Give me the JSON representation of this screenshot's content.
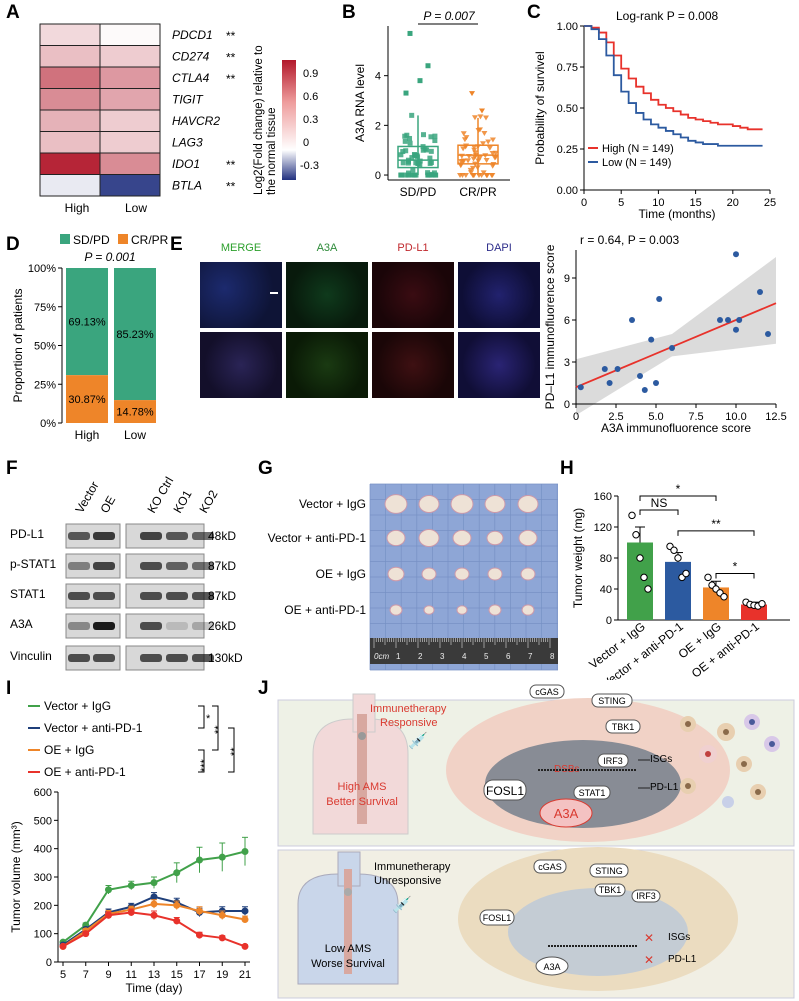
{
  "panel_labels": [
    "A",
    "B",
    "C",
    "D",
    "E",
    "F",
    "G",
    "H",
    "I",
    "J"
  ],
  "heatmap": {
    "columns": [
      "High",
      "Low"
    ],
    "genes": [
      "PDCD1",
      "CD274",
      "CTLA4",
      "TIGIT",
      "HAVCR2",
      "LAG3",
      "IDO1",
      "BTLA"
    ],
    "significance": [
      "**",
      "**",
      "**",
      "",
      "",
      "",
      "**",
      "**"
    ],
    "values_high": [
      0.15,
      0.25,
      0.55,
      0.45,
      0.3,
      0.25,
      0.85,
      -0.05
    ],
    "values_low": [
      0.02,
      0.2,
      0.4,
      0.35,
      0.2,
      0.2,
      0.45,
      -0.45
    ],
    "colorbar_label_1": "Log2(Fold change) relative to",
    "colorbar_label_2": "the normal tissue",
    "colorbar_ticks": [
      "0.9",
      "0.6",
      "0.3",
      "0",
      "-0.3"
    ],
    "colors": {
      "high": "#b2182b",
      "mid": "#ffffff",
      "low": "#21307f"
    }
  },
  "chart_data": [
    {
      "panel": "B",
      "type": "box",
      "title": "P = 0.007",
      "ylabel": "A3A RNA level",
      "categories": [
        "SD/PD",
        "CR/PR"
      ],
      "yticks": [
        "0",
        "2",
        "4"
      ],
      "ylim": [
        -0.2,
        6
      ],
      "colors": [
        "#3aa57e",
        "#ee8529"
      ],
      "boxes": [
        {
          "name": "SD/PD",
          "q1": 0.3,
          "median": 0.6,
          "q3": 1.15,
          "whisker_low": 0.0,
          "whisker_high": 2.4
        },
        {
          "name": "CR/PR",
          "q1": 0.45,
          "median": 0.8,
          "q3": 1.2,
          "whisker_low": 0.0,
          "whisker_high": 2.3
        }
      ]
    },
    {
      "panel": "C",
      "type": "line",
      "title": "Log-rank P = 0.008",
      "xlabel": "Time (months)",
      "ylabel": "Probability of survivel",
      "xticks": [
        "0",
        "5",
        "10",
        "15",
        "20",
        "25"
      ],
      "yticks": [
        "0.00",
        "0.25",
        "0.50",
        "0.75",
        "1.00"
      ],
      "xlim": [
        0,
        25
      ],
      "ylim": [
        0,
        1
      ],
      "series": [
        {
          "name": "High (N = 149)",
          "color": "#e8322b",
          "x": [
            0,
            1,
            2,
            3,
            4,
            5,
            6,
            7,
            8,
            9,
            10,
            11,
            12,
            13,
            14,
            15,
            16,
            17,
            18,
            19,
            20,
            21,
            22,
            23,
            24
          ],
          "y": [
            1.0,
            0.99,
            0.96,
            0.9,
            0.82,
            0.74,
            0.68,
            0.63,
            0.59,
            0.55,
            0.52,
            0.5,
            0.48,
            0.46,
            0.44,
            0.43,
            0.42,
            0.41,
            0.4,
            0.4,
            0.39,
            0.38,
            0.37,
            0.37,
            0.37
          ]
        },
        {
          "name": "Low (N = 149)",
          "color": "#2c5aa0",
          "x": [
            0,
            1,
            2,
            3,
            4,
            5,
            6,
            7,
            8,
            9,
            10,
            11,
            12,
            13,
            14,
            15,
            16,
            17,
            18,
            19,
            20,
            21,
            22,
            23,
            24
          ],
          "y": [
            1.0,
            0.98,
            0.92,
            0.82,
            0.7,
            0.6,
            0.53,
            0.47,
            0.43,
            0.4,
            0.38,
            0.36,
            0.34,
            0.32,
            0.3,
            0.29,
            0.28,
            0.28,
            0.27,
            0.27,
            0.27,
            0.27,
            0.27,
            0.27,
            0.27
          ]
        }
      ]
    },
    {
      "panel": "D",
      "type": "bar",
      "title": "P = 0.001",
      "ylabel": "Proportion of patients",
      "categories": [
        "High",
        "Low"
      ],
      "yticks": [
        "0%",
        "25%",
        "50%",
        "75%",
        "100%"
      ],
      "ylim": [
        0,
        100
      ],
      "series": [
        {
          "name": "SD/PD",
          "color": "#3aa57e",
          "values": [
            69.13,
            85.23
          ],
          "labels": [
            "69.13%",
            "85.23%"
          ]
        },
        {
          "name": "CR/PR",
          "color": "#ee8529",
          "values": [
            30.87,
            14.78
          ],
          "labels": [
            "30.87%",
            "14.78%"
          ]
        }
      ]
    },
    {
      "panel": "E",
      "type": "scatter",
      "title": "r = 0.64, P = 0.003",
      "xlabel": "A3A immunofluorence score",
      "ylabel": "PD–L1 immunofluorence score",
      "xticks": [
        "0",
        "2.5",
        "5.0",
        "7.5",
        "10.0",
        "12.5"
      ],
      "yticks": [
        "0",
        "3",
        "6",
        "9"
      ],
      "xlim": [
        0,
        12.5
      ],
      "ylim": [
        0,
        11
      ],
      "points": {
        "x": [
          0.3,
          1.8,
          2.1,
          2.6,
          3.5,
          4.0,
          4.3,
          4.7,
          5.0,
          5.2,
          6.0,
          9.0,
          9.5,
          10.0,
          10.2,
          10.0,
          11.5,
          12.0
        ],
        "y": [
          1.2,
          2.5,
          1.5,
          2.5,
          6.0,
          2.0,
          1.0,
          4.6,
          1.5,
          7.5,
          4.0,
          6.0,
          6.0,
          5.3,
          6.0,
          10.7,
          8.0,
          5.0
        ]
      },
      "fit": {
        "x": [
          0,
          12.5
        ],
        "y": [
          1.2,
          7.2
        ]
      }
    },
    {
      "panel": "H",
      "type": "bar",
      "ylabel": "Tumor  weight (mg)",
      "categories": [
        "Vector + IgG",
        "Vector + anti-PD-1",
        "OE + IgG",
        "OE + anti-PD-1"
      ],
      "yticks": [
        "0",
        "40",
        "80",
        "120",
        "160"
      ],
      "ylim": [
        0,
        160
      ],
      "values": [
        100,
        75,
        42,
        20
      ],
      "errors": [
        20,
        12,
        8,
        3
      ],
      "colors": [
        "#41a14a",
        "#2c5aa0",
        "#ee8529",
        "#e8322b"
      ],
      "points": [
        [
          135,
          110,
          80,
          55,
          40
        ],
        [
          95,
          90,
          80,
          55,
          60
        ],
        [
          55,
          45,
          40,
          35,
          30
        ],
        [
          23,
          20,
          19,
          18,
          21
        ]
      ],
      "annotations": [
        {
          "text": "NS",
          "between": [
            0,
            1
          ],
          "level": 142
        },
        {
          "text": "*",
          "between": [
            0,
            2
          ],
          "level": 160
        },
        {
          "text": "**",
          "between": [
            1,
            3
          ],
          "level": 115
        },
        {
          "text": "*",
          "between": [
            2,
            3
          ],
          "level": 60
        }
      ]
    },
    {
      "panel": "I",
      "type": "line",
      "xlabel": "Time (day)",
      "ylabel": "Tumor  volume (mm³)",
      "xticks": [
        "5",
        "7",
        "9",
        "11",
        "13",
        "15",
        "17",
        "19",
        "21"
      ],
      "yticks": [
        "0",
        "100",
        "200",
        "300",
        "400",
        "500",
        "600"
      ],
      "xlim": [
        5,
        21
      ],
      "ylim": [
        0,
        600
      ],
      "series": [
        {
          "name": "Vector + IgG",
          "color": "#41a14a",
          "x": [
            5,
            7,
            9,
            11,
            13,
            15,
            17,
            19,
            21
          ],
          "y": [
            70,
            130,
            255,
            270,
            280,
            315,
            360,
            370,
            390
          ],
          "err": [
            5,
            8,
            15,
            15,
            20,
            35,
            45,
            50,
            50
          ]
        },
        {
          "name": "Vector + anti-PD-1",
          "color": "#1f3f7a",
          "x": [
            5,
            7,
            9,
            11,
            13,
            15,
            17,
            19,
            21
          ],
          "y": [
            60,
            115,
            175,
            195,
            230,
            210,
            175,
            180,
            180
          ],
          "err": [
            5,
            8,
            12,
            12,
            15,
            15,
            15,
            15,
            15
          ]
        },
        {
          "name": "OE + IgG",
          "color": "#ee8529",
          "x": [
            5,
            7,
            9,
            11,
            13,
            15,
            17,
            19,
            21
          ],
          "y": [
            55,
            110,
            170,
            185,
            205,
            200,
            180,
            165,
            150
          ],
          "err": [
            5,
            8,
            12,
            12,
            15,
            15,
            15,
            15,
            12
          ]
        },
        {
          "name": "OE + anti-PD-1",
          "color": "#e8322b",
          "x": [
            5,
            7,
            9,
            11,
            13,
            15,
            17,
            19,
            21
          ],
          "y": [
            55,
            100,
            165,
            175,
            165,
            145,
            95,
            85,
            55
          ],
          "err": [
            5,
            8,
            12,
            12,
            15,
            12,
            10,
            8,
            6
          ]
        }
      ],
      "significance": [
        "*",
        "**",
        "**",
        "***"
      ]
    }
  ],
  "panelE": {
    "labels": [
      "MERGE",
      "A3A",
      "PD-L1",
      "DAPI"
    ],
    "colors": {
      "merge_m": "#2ca02c",
      "merge_r": "#d62728",
      "merge_e": "#1f4fd1",
      "a3a": "#2e8b3a",
      "pdl1": "#c0282d",
      "dapi": "#2c2c8a"
    }
  },
  "panelF": {
    "columns": [
      "Vector",
      "OE",
      "KO Ctrl",
      "KO1",
      "KO2"
    ],
    "rows": [
      "PD-L1",
      "p-STAT1",
      "STAT1",
      "A3A",
      "Vinculin"
    ],
    "sizes": [
      "48kD",
      "87kD",
      "87kD",
      "26kD",
      "130kD"
    ]
  },
  "panelG": {
    "rows": [
      "Vector + IgG",
      "Vector + anti-PD-1",
      "OE + IgG",
      "OE + anti-PD-1"
    ],
    "ruler_unit": "0cm",
    "ruler_ticks": [
      "1",
      "2",
      "3",
      "4",
      "5",
      "6",
      "7",
      "8"
    ]
  },
  "panelJ": {
    "top": {
      "title1": "Immunetherapy",
      "title2": "Responsive",
      "person1": "High AMS",
      "person2": "Better Survival",
      "labels": [
        "cGAS",
        "STING",
        "TBK1",
        "IRF3",
        "ISGs",
        "DSBs",
        "FOSL1",
        "STAT1",
        "PD-L1",
        "A3A"
      ],
      "phospho": "P"
    },
    "bottom": {
      "title1": "Immunetherapy",
      "title2": "Unresponsive",
      "person1": "Low AMS",
      "person2": "Worse Survival",
      "labels": [
        "cGAS",
        "STING",
        "TBK1",
        "IRF3",
        "FOSL1",
        "ISGs",
        "PD-L1",
        "A3A"
      ]
    }
  }
}
